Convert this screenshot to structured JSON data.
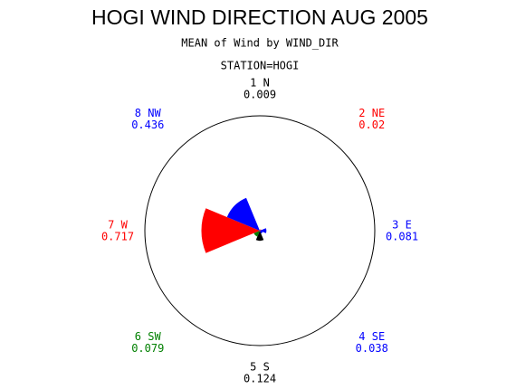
{
  "chart_data": {
    "type": "star",
    "title": "HOGI WIND DIRECTION AUG 2005",
    "subtitle": "MEAN of Wind by WIND_DIR",
    "caption": "STATION=HOGI",
    "categories": [
      "1 N",
      "2 NE",
      "3 E",
      "4 SE",
      "5 S",
      "6 SW",
      "7 W",
      "8 NW"
    ],
    "values": [
      0.009,
      0.02,
      0.081,
      0.038,
      0.124,
      0.079,
      0.717,
      0.436
    ],
    "colors": [
      "#000000",
      "#ff0000",
      "#0000ff",
      "#0000ff",
      "#000000",
      "#008000",
      "#ff0000",
      "#0000ff"
    ]
  }
}
